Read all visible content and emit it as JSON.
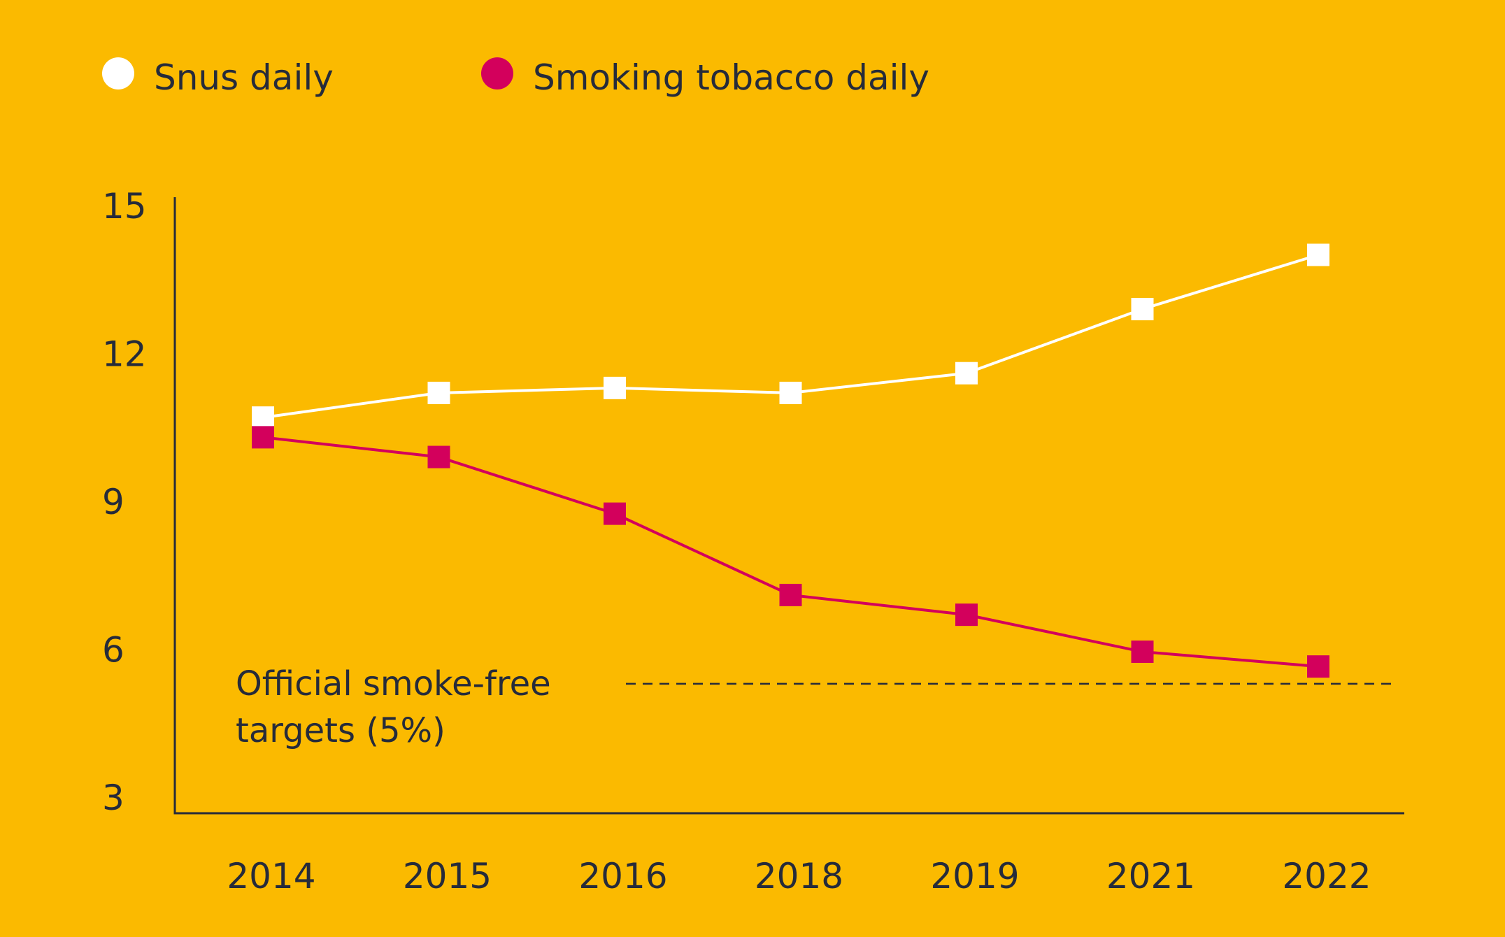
{
  "colors": {
    "background": "#FBBA00",
    "text": "#262B3A",
    "axis": "#262B3A",
    "snus": "#FFFFFF",
    "smoking": "#D3005C"
  },
  "chart_data": {
    "type": "line",
    "title": "",
    "xlabel": "",
    "ylabel": "",
    "categories": [
      "2014",
      "2015",
      "2016",
      "2018",
      "2019",
      "2021",
      "2022"
    ],
    "series": [
      {
        "name": "Snus daily",
        "color": "#FFFFFF",
        "values": [
          10.7,
          11.2,
          11.3,
          11.2,
          11.6,
          12.9,
          14.0
        ]
      },
      {
        "name": "Smoking tobacco daily",
        "color": "#D3005C",
        "values": [
          10.3,
          9.9,
          8.75,
          7.1,
          6.7,
          5.95,
          5.65
        ]
      }
    ],
    "yticks": [
      15,
      12,
      9,
      6,
      3
    ],
    "ylim": [
      3,
      15
    ],
    "grid": false,
    "legend_position": "top-left",
    "reference_line": {
      "value": 5.3,
      "label_lines": [
        "Official smoke-free",
        "targets (5%)"
      ]
    }
  }
}
